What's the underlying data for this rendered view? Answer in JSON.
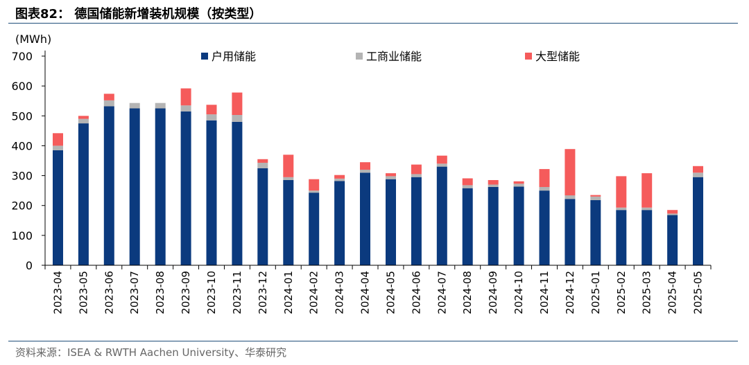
{
  "figure": {
    "title": "图表82： 德国储能新增装机规模（按类型）",
    "source": "资料来源：ISEA & RWTH Aachen University、华泰研究"
  },
  "chart_data": {
    "type": "bar",
    "stacked": true,
    "unit_label": "(MWh)",
    "ylim": [
      0,
      700
    ],
    "yticks": [
      0,
      100,
      200,
      300,
      400,
      500,
      600,
      700
    ],
    "grid": false,
    "legend_position": "top",
    "categories": [
      "2023-04",
      "2023-05",
      "2023-06",
      "2023-07",
      "2023-08",
      "2023-09",
      "2023-10",
      "2023-11",
      "2023-12",
      "2024-01",
      "2024-02",
      "2024-03",
      "2024-04",
      "2024-05",
      "2024-06",
      "2024-07",
      "2024-08",
      "2024-09",
      "2024-10",
      "2024-11",
      "2024-12",
      "2025-01",
      "2025-02",
      "2025-03",
      "2025-04",
      "2025-05"
    ],
    "series": [
      {
        "name": "户用储能",
        "color": "#0b3a7e",
        "values": [
          385,
          475,
          532,
          525,
          525,
          515,
          485,
          480,
          325,
          285,
          243,
          282,
          310,
          288,
          295,
          330,
          258,
          262,
          263,
          250,
          222,
          218,
          185,
          185,
          168,
          295
        ]
      },
      {
        "name": "工商业储能",
        "color": "#b4b4b4",
        "values": [
          15,
          15,
          20,
          18,
          18,
          20,
          20,
          23,
          18,
          10,
          7,
          8,
          10,
          10,
          10,
          10,
          10,
          8,
          10,
          12,
          12,
          12,
          8,
          8,
          5,
          15
        ]
      },
      {
        "name": "大型储能",
        "color": "#f55b5b",
        "values": [
          42,
          10,
          22,
          0,
          0,
          57,
          32,
          75,
          12,
          75,
          38,
          12,
          25,
          10,
          32,
          27,
          23,
          15,
          8,
          60,
          155,
          5,
          105,
          115,
          12,
          22
        ]
      }
    ]
  }
}
